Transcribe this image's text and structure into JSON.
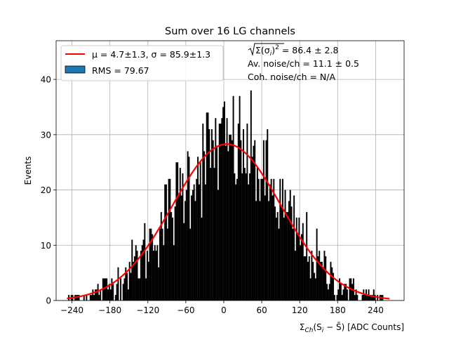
{
  "chart_data": {
    "type": "bar",
    "title": "Sum over 16 LG channels",
    "xlabel": "Σ_Ch(S_i − S̄) [ADC Counts]",
    "xlabel_parts": {
      "sigma": "Σ",
      "sub": "Ch",
      "mid": "(S",
      "sub2": "i",
      "minus": " − ",
      "sbar": "S̄",
      "tail": ") [ADC Counts]"
    },
    "ylabel": "Events",
    "xlim": [
      -265,
      285
    ],
    "ylim": [
      0,
      47
    ],
    "xticks": [
      -240,
      -180,
      -120,
      -60,
      0,
      60,
      120,
      180,
      240
    ],
    "yticks": [
      0,
      10,
      20,
      30,
      40
    ],
    "grid": true,
    "legend_position": "top-left",
    "bin_width": 2,
    "hist_range": [
      -248,
      252
    ],
    "hist_mean": 4.7,
    "hist_sigma": 85.9,
    "hist_peak": 28.3,
    "fit": {
      "label_prefix": "μ = ",
      "label": "μ = 4.7±1.3, σ = 85.9±1.3",
      "mu": 4.7,
      "mu_err": 1.3,
      "sigma": 85.9,
      "sigma_err": 1.3,
      "amplitude": 28.3,
      "x_range": [
        -248,
        262
      ],
      "color": "#ff0000"
    },
    "legend": [
      {
        "label": "μ = 4.7±1.3, σ = 85.9±1.3",
        "type": "line",
        "color": "#ff0000"
      },
      {
        "label": "RMS = 79.67",
        "type": "patch",
        "color": "#1f77b4"
      }
    ],
    "annotations": [
      "√Σ(σᵢ)² = 86.4 ± 2.8",
      "Av. noise/ch = 11.1 ± 0.5",
      "Coh. noise/ch = N/A"
    ],
    "annotation_parts": {
      "sqrt_label": "Σ(σ",
      "sqrt_sub": "i",
      "sqrt_close": ")",
      "sqrt_exp": "2",
      "sqrt_value": " = 86.4 ± 2.8"
    },
    "bar_color": "#000000"
  }
}
